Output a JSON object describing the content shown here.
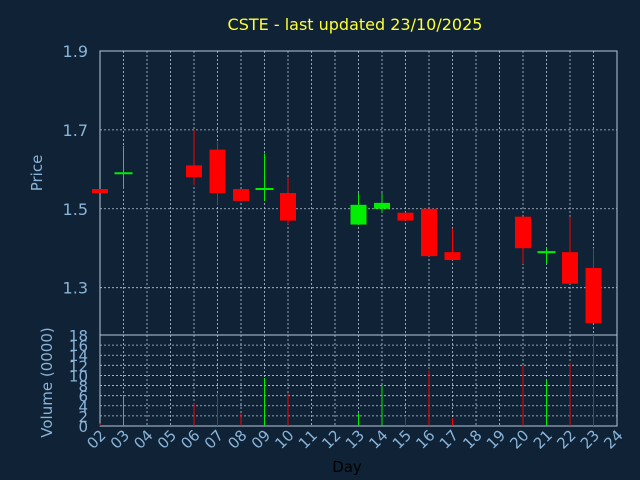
{
  "chart_data": {
    "type": "candlestick",
    "title": "CSTE - last updated 23/10/2025",
    "xlabel": "Day",
    "x_ticks": [
      "02",
      "03",
      "04",
      "05",
      "06",
      "07",
      "08",
      "09",
      "10",
      "11",
      "12",
      "13",
      "14",
      "15",
      "16",
      "17",
      "18",
      "19",
      "20",
      "21",
      "22",
      "23",
      "24"
    ],
    "price_panel": {
      "ylabel": "Price",
      "ylim": [
        1.18,
        1.9
      ],
      "y_ticks": [
        "1.9",
        "1.7",
        "1.5",
        "1.3"
      ],
      "y_tick_values": [
        1.9,
        1.7,
        1.5,
        1.3
      ]
    },
    "volume_panel": {
      "ylabel": "Volume (0000)",
      "ylim": [
        0,
        18
      ],
      "y_ticks": [
        "18",
        "16",
        "14",
        "12",
        "10",
        "8",
        "6",
        "4",
        "2",
        "0"
      ],
      "y_tick_values": [
        18,
        16,
        14,
        12,
        10,
        8,
        6,
        4,
        2,
        0
      ]
    },
    "series": [
      {
        "day": "02",
        "open": 1.55,
        "close": 1.54,
        "high": 1.55,
        "low": 1.54,
        "volume": 0.5
      },
      {
        "day": "03",
        "open": 1.59,
        "close": 1.59,
        "high": 1.66,
        "low": 1.55,
        "volume": 6
      },
      {
        "day": "06",
        "open": 1.61,
        "close": 1.58,
        "high": 1.7,
        "low": 1.56,
        "volume": 4.5
      },
      {
        "day": "07",
        "open": 1.65,
        "close": 1.54,
        "high": 1.67,
        "low": 1.51,
        "volume": 6.5
      },
      {
        "day": "08",
        "open": 1.55,
        "close": 1.52,
        "high": 1.55,
        "low": 1.52,
        "volume": 2.5
      },
      {
        "day": "09",
        "open": 1.55,
        "close": 1.55,
        "high": 1.64,
        "low": 1.52,
        "volume": 9.5
      },
      {
        "day": "10",
        "open": 1.54,
        "close": 1.47,
        "high": 1.58,
        "low": 1.46,
        "volume": 6.5
      },
      {
        "day": "13",
        "open": 1.46,
        "close": 1.51,
        "high": 1.54,
        "low": 1.46,
        "volume": 2.5
      },
      {
        "day": "14",
        "open": 1.5,
        "close": 1.515,
        "high": 1.54,
        "low": 1.49,
        "volume": 8
      },
      {
        "day": "15",
        "open": 1.49,
        "close": 1.47,
        "high": 1.49,
        "low": 1.47,
        "volume": 2
      },
      {
        "day": "16",
        "open": 1.5,
        "close": 1.38,
        "high": 1.5,
        "low": 1.38,
        "volume": 11
      },
      {
        "day": "17",
        "open": 1.39,
        "close": 1.37,
        "high": 1.45,
        "low": 1.37,
        "volume": 1.5
      },
      {
        "day": "20",
        "open": 1.48,
        "close": 1.4,
        "high": 1.48,
        "low": 1.36,
        "volume": 12
      },
      {
        "day": "21",
        "open": 1.39,
        "close": 1.39,
        "high": 1.4,
        "low": 1.36,
        "volume": 9
      },
      {
        "day": "22",
        "open": 1.39,
        "close": 1.31,
        "high": 1.48,
        "low": 1.31,
        "volume": 12.5
      },
      {
        "day": "23",
        "open": 1.35,
        "close": 1.21,
        "high": 1.4,
        "low": 1.21,
        "volume": 18
      }
    ],
    "colors": {
      "background": "#0f2236",
      "axis_text": "#8ab4d8",
      "title": "#ffff33",
      "grid": "#b8c8d8",
      "up": "#00ee00",
      "down": "#ff0000",
      "label": "#000000"
    }
  }
}
